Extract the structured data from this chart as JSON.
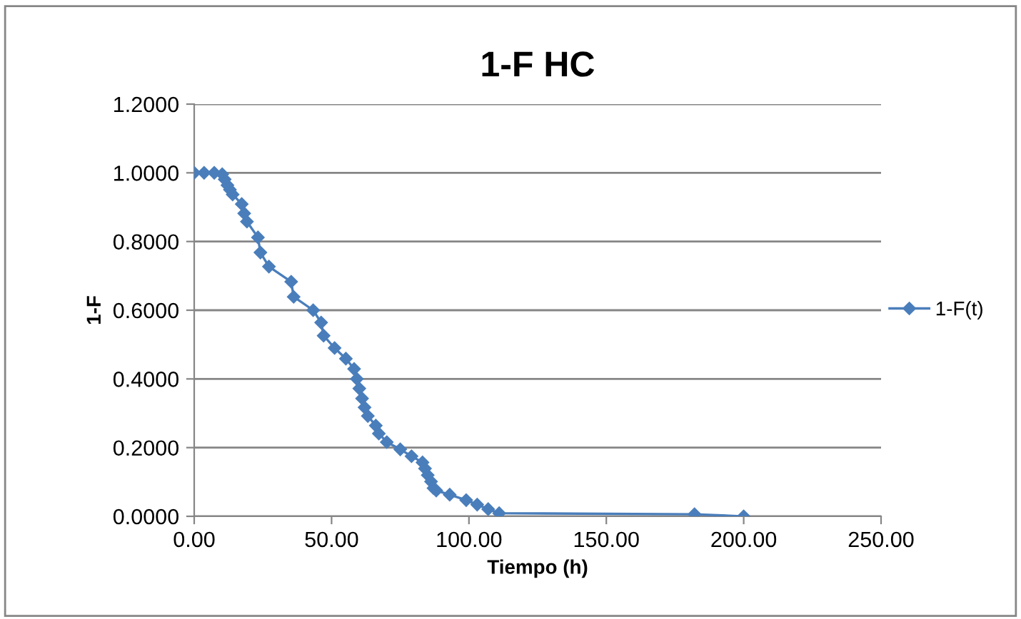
{
  "chart_data": {
    "type": "line",
    "title": "1-F HC",
    "xlabel": "Tiempo (h)",
    "ylabel": "1-F",
    "series": [
      {
        "name": "1-F(t)",
        "color": "#4a7ebb",
        "x": [
          0,
          3.6,
          7.3,
          10.2,
          11.1,
          12.1,
          13.0,
          14.0,
          17.3,
          18.2,
          19.2,
          23.2,
          24.1,
          27.2,
          35.3,
          36.2,
          43.3,
          46.2,
          47.1,
          51.1,
          55.2,
          58.2,
          59.2,
          60.1,
          61.1,
          62.0,
          63.2,
          66.1,
          67.2,
          70.1,
          75.0,
          79.1,
          83.1,
          84.0,
          85.0,
          86.2,
          87.1,
          88.1,
          93.0,
          99.0,
          103.0,
          107.0,
          111.0,
          182.1,
          200.0
        ],
        "values": [
          1.0,
          1.0,
          1.0,
          0.996,
          0.981,
          0.964,
          0.951,
          0.937,
          0.909,
          0.882,
          0.858,
          0.812,
          0.768,
          0.727,
          0.683,
          0.639,
          0.6,
          0.564,
          0.526,
          0.49,
          0.459,
          0.429,
          0.4,
          0.372,
          0.343,
          0.317,
          0.292,
          0.264,
          0.241,
          0.216,
          0.195,
          0.175,
          0.157,
          0.139,
          0.12,
          0.101,
          0.082,
          0.075,
          0.063,
          0.047,
          0.034,
          0.021,
          0.009,
          0.006,
          0.0
        ]
      }
    ],
    "xlim": [
      0,
      250
    ],
    "xticks": [
      {
        "value": 0,
        "label": "0.00"
      },
      {
        "value": 50,
        "label": "50.00"
      },
      {
        "value": 100,
        "label": "100.00"
      },
      {
        "value": 150,
        "label": "150.00"
      },
      {
        "value": 200,
        "label": "200.00"
      },
      {
        "value": 250,
        "label": "250.00"
      }
    ],
    "ylim": [
      0,
      1.2
    ],
    "yticks": [
      {
        "value": 0,
        "label": "0.0000"
      },
      {
        "value": 0.2,
        "label": "0.2000"
      },
      {
        "value": 0.4,
        "label": "0.4000"
      },
      {
        "value": 0.6,
        "label": "0.6000"
      },
      {
        "value": 0.8,
        "label": "0.8000"
      },
      {
        "value": 1.0,
        "label": "1.0000"
      },
      {
        "value": 1.2,
        "label": "1.2000"
      }
    ],
    "grid": "y",
    "legend": "right",
    "marker": "diamond",
    "line_style": "solid"
  }
}
